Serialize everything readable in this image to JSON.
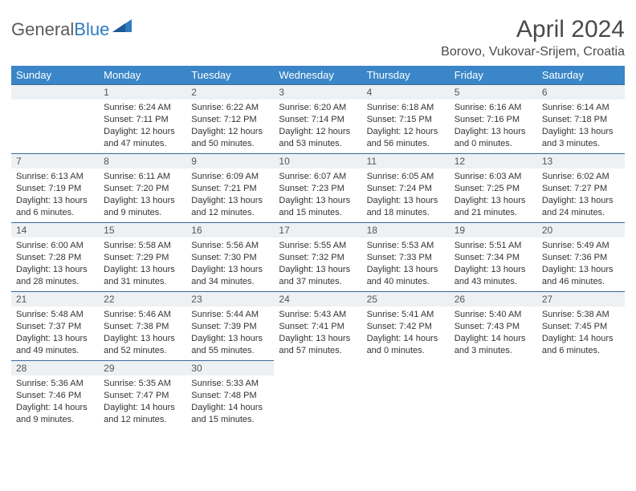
{
  "logo": {
    "text_general": "General",
    "text_blue": "Blue"
  },
  "title": "April 2024",
  "location": "Borovo, Vukovar-Srijem, Croatia",
  "colors": {
    "header_bg": "#3a86c8",
    "header_text": "#ffffff",
    "daynum_bg": "#eef1f3",
    "daynum_border": "#3a6a9a",
    "text": "#333333",
    "title_color": "#4a4a4a",
    "logo_gray": "#5a5a5a",
    "logo_blue": "#2f7bbf"
  },
  "weekdays": [
    "Sunday",
    "Monday",
    "Tuesday",
    "Wednesday",
    "Thursday",
    "Friday",
    "Saturday"
  ],
  "weeks": [
    [
      null,
      {
        "n": "1",
        "sr": "Sunrise: 6:24 AM",
        "ss": "Sunset: 7:11 PM",
        "dl1": "Daylight: 12 hours",
        "dl2": "and 47 minutes."
      },
      {
        "n": "2",
        "sr": "Sunrise: 6:22 AM",
        "ss": "Sunset: 7:12 PM",
        "dl1": "Daylight: 12 hours",
        "dl2": "and 50 minutes."
      },
      {
        "n": "3",
        "sr": "Sunrise: 6:20 AM",
        "ss": "Sunset: 7:14 PM",
        "dl1": "Daylight: 12 hours",
        "dl2": "and 53 minutes."
      },
      {
        "n": "4",
        "sr": "Sunrise: 6:18 AM",
        "ss": "Sunset: 7:15 PM",
        "dl1": "Daylight: 12 hours",
        "dl2": "and 56 minutes."
      },
      {
        "n": "5",
        "sr": "Sunrise: 6:16 AM",
        "ss": "Sunset: 7:16 PM",
        "dl1": "Daylight: 13 hours",
        "dl2": "and 0 minutes."
      },
      {
        "n": "6",
        "sr": "Sunrise: 6:14 AM",
        "ss": "Sunset: 7:18 PM",
        "dl1": "Daylight: 13 hours",
        "dl2": "and 3 minutes."
      }
    ],
    [
      {
        "n": "7",
        "sr": "Sunrise: 6:13 AM",
        "ss": "Sunset: 7:19 PM",
        "dl1": "Daylight: 13 hours",
        "dl2": "and 6 minutes."
      },
      {
        "n": "8",
        "sr": "Sunrise: 6:11 AM",
        "ss": "Sunset: 7:20 PM",
        "dl1": "Daylight: 13 hours",
        "dl2": "and 9 minutes."
      },
      {
        "n": "9",
        "sr": "Sunrise: 6:09 AM",
        "ss": "Sunset: 7:21 PM",
        "dl1": "Daylight: 13 hours",
        "dl2": "and 12 minutes."
      },
      {
        "n": "10",
        "sr": "Sunrise: 6:07 AM",
        "ss": "Sunset: 7:23 PM",
        "dl1": "Daylight: 13 hours",
        "dl2": "and 15 minutes."
      },
      {
        "n": "11",
        "sr": "Sunrise: 6:05 AM",
        "ss": "Sunset: 7:24 PM",
        "dl1": "Daylight: 13 hours",
        "dl2": "and 18 minutes."
      },
      {
        "n": "12",
        "sr": "Sunrise: 6:03 AM",
        "ss": "Sunset: 7:25 PM",
        "dl1": "Daylight: 13 hours",
        "dl2": "and 21 minutes."
      },
      {
        "n": "13",
        "sr": "Sunrise: 6:02 AM",
        "ss": "Sunset: 7:27 PM",
        "dl1": "Daylight: 13 hours",
        "dl2": "and 24 minutes."
      }
    ],
    [
      {
        "n": "14",
        "sr": "Sunrise: 6:00 AM",
        "ss": "Sunset: 7:28 PM",
        "dl1": "Daylight: 13 hours",
        "dl2": "and 28 minutes."
      },
      {
        "n": "15",
        "sr": "Sunrise: 5:58 AM",
        "ss": "Sunset: 7:29 PM",
        "dl1": "Daylight: 13 hours",
        "dl2": "and 31 minutes."
      },
      {
        "n": "16",
        "sr": "Sunrise: 5:56 AM",
        "ss": "Sunset: 7:30 PM",
        "dl1": "Daylight: 13 hours",
        "dl2": "and 34 minutes."
      },
      {
        "n": "17",
        "sr": "Sunrise: 5:55 AM",
        "ss": "Sunset: 7:32 PM",
        "dl1": "Daylight: 13 hours",
        "dl2": "and 37 minutes."
      },
      {
        "n": "18",
        "sr": "Sunrise: 5:53 AM",
        "ss": "Sunset: 7:33 PM",
        "dl1": "Daylight: 13 hours",
        "dl2": "and 40 minutes."
      },
      {
        "n": "19",
        "sr": "Sunrise: 5:51 AM",
        "ss": "Sunset: 7:34 PM",
        "dl1": "Daylight: 13 hours",
        "dl2": "and 43 minutes."
      },
      {
        "n": "20",
        "sr": "Sunrise: 5:49 AM",
        "ss": "Sunset: 7:36 PM",
        "dl1": "Daylight: 13 hours",
        "dl2": "and 46 minutes."
      }
    ],
    [
      {
        "n": "21",
        "sr": "Sunrise: 5:48 AM",
        "ss": "Sunset: 7:37 PM",
        "dl1": "Daylight: 13 hours",
        "dl2": "and 49 minutes."
      },
      {
        "n": "22",
        "sr": "Sunrise: 5:46 AM",
        "ss": "Sunset: 7:38 PM",
        "dl1": "Daylight: 13 hours",
        "dl2": "and 52 minutes."
      },
      {
        "n": "23",
        "sr": "Sunrise: 5:44 AM",
        "ss": "Sunset: 7:39 PM",
        "dl1": "Daylight: 13 hours",
        "dl2": "and 55 minutes."
      },
      {
        "n": "24",
        "sr": "Sunrise: 5:43 AM",
        "ss": "Sunset: 7:41 PM",
        "dl1": "Daylight: 13 hours",
        "dl2": "and 57 minutes."
      },
      {
        "n": "25",
        "sr": "Sunrise: 5:41 AM",
        "ss": "Sunset: 7:42 PM",
        "dl1": "Daylight: 14 hours",
        "dl2": "and 0 minutes."
      },
      {
        "n": "26",
        "sr": "Sunrise: 5:40 AM",
        "ss": "Sunset: 7:43 PM",
        "dl1": "Daylight: 14 hours",
        "dl2": "and 3 minutes."
      },
      {
        "n": "27",
        "sr": "Sunrise: 5:38 AM",
        "ss": "Sunset: 7:45 PM",
        "dl1": "Daylight: 14 hours",
        "dl2": "and 6 minutes."
      }
    ],
    [
      {
        "n": "28",
        "sr": "Sunrise: 5:36 AM",
        "ss": "Sunset: 7:46 PM",
        "dl1": "Daylight: 14 hours",
        "dl2": "and 9 minutes."
      },
      {
        "n": "29",
        "sr": "Sunrise: 5:35 AM",
        "ss": "Sunset: 7:47 PM",
        "dl1": "Daylight: 14 hours",
        "dl2": "and 12 minutes."
      },
      {
        "n": "30",
        "sr": "Sunrise: 5:33 AM",
        "ss": "Sunset: 7:48 PM",
        "dl1": "Daylight: 14 hours",
        "dl2": "and 15 minutes."
      },
      null,
      null,
      null,
      null
    ]
  ]
}
